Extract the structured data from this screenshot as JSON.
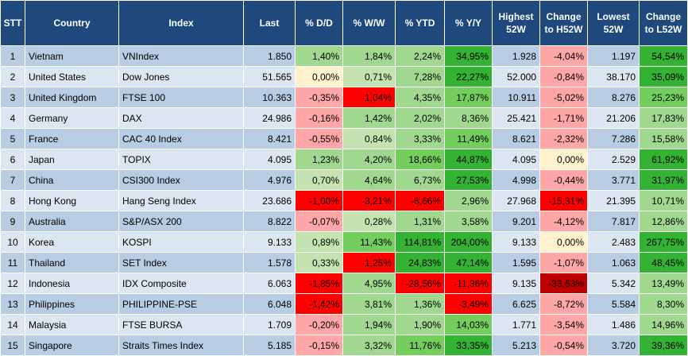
{
  "headers": [
    "STT",
    "Country",
    "Index",
    "Last",
    "% D/D",
    "% W/W",
    "% YTD",
    "% Y/Y",
    "Highest 52W",
    "Change to H52W",
    "Lowest 52W",
    "Change to L52W"
  ],
  "rows": [
    {
      "stt": "1",
      "country": "Vietnam",
      "index": "VNIndex",
      "last": "1.850",
      "dd": "1,40%",
      "ww": "1,84%",
      "ytd": "2,24%",
      "yy": "34,95%",
      "high": "1.928",
      "chg_high": "-4,04%",
      "low": "1.197",
      "chg_low": "54,54%"
    },
    {
      "stt": "2",
      "country": "United States",
      "index": "Dow Jones",
      "last": "51.565",
      "dd": "0,00%",
      "ww": "0,71%",
      "ytd": "7,28%",
      "yy": "22,27%",
      "high": "52.000",
      "chg_high": "-0,84%",
      "low": "38.170",
      "chg_low": "35,09%"
    },
    {
      "stt": "3",
      "country": "United Kingdom",
      "index": "FTSE 100",
      "last": "10.363",
      "dd": "-0,35%",
      "ww": "-1,04%",
      "ytd": "4,35%",
      "yy": "17,87%",
      "high": "10.911",
      "chg_high": "-5,02%",
      "low": "8.276",
      "chg_low": "25,23%"
    },
    {
      "stt": "4",
      "country": "Germany",
      "index": "DAX",
      "last": "24.986",
      "dd": "-0,16%",
      "ww": "1,42%",
      "ytd": "2,02%",
      "yy": "8,36%",
      "high": "25.421",
      "chg_high": "-1,71%",
      "low": "21.206",
      "chg_low": "17,83%"
    },
    {
      "stt": "5",
      "country": "France",
      "index": "CAC 40 Index",
      "last": "8.421",
      "dd": "-0,55%",
      "ww": "0,84%",
      "ytd": "3,33%",
      "yy": "11,49%",
      "high": "8.621",
      "chg_high": "-2,32%",
      "low": "7.286",
      "chg_low": "15,58%"
    },
    {
      "stt": "6",
      "country": "Japan",
      "index": "TOPIX",
      "last": "4.095",
      "dd": "1,23%",
      "ww": "4,20%",
      "ytd": "18,66%",
      "yy": "44,87%",
      "high": "4.095",
      "chg_high": "0,00%",
      "low": "2.529",
      "chg_low": "61,92%"
    },
    {
      "stt": "7",
      "country": "China",
      "index": "CSI300 Index",
      "last": "4.976",
      "dd": "0,70%",
      "ww": "4,64%",
      "ytd": "6,73%",
      "yy": "27,53%",
      "high": "4.998",
      "chg_high": "-0,44%",
      "low": "3.771",
      "chg_low": "31,97%"
    },
    {
      "stt": "8",
      "country": "Hong Kong",
      "index": "Hang Seng Index",
      "last": "23.686",
      "dd": "-1,00%",
      "ww": "-3,21%",
      "ytd": "-6,66%",
      "yy": "2,96%",
      "high": "27.968",
      "chg_high": "-15,31%",
      "low": "21.395",
      "chg_low": "10,71%"
    },
    {
      "stt": "9",
      "country": "Australia",
      "index": "S&P/ASX 200",
      "last": "8.822",
      "dd": "-0,07%",
      "ww": "0,28%",
      "ytd": "1,31%",
      "yy": "3,58%",
      "high": "9.201",
      "chg_high": "-4,12%",
      "low": "7.817",
      "chg_low": "12,86%"
    },
    {
      "stt": "10",
      "country": "Korea",
      "index": "KOSPI",
      "last": "9.133",
      "dd": "0,89%",
      "ww": "11,43%",
      "ytd": "114,81%",
      "yy": "204,00%",
      "high": "9.133",
      "chg_high": "0,00%",
      "low": "2.483",
      "chg_low": "267,75%"
    },
    {
      "stt": "11",
      "country": "Thailand",
      "index": "SET Index",
      "last": "1.578",
      "dd": "0,33%",
      "ww": "-1,25%",
      "ytd": "24,83%",
      "yy": "47,14%",
      "high": "1.595",
      "chg_high": "-1,07%",
      "low": "1.063",
      "chg_low": "48,45%"
    },
    {
      "stt": "12",
      "country": "Indonesia",
      "index": "IDX Composite",
      "last": "6.063",
      "dd": "-1,85%",
      "ww": "4,95%",
      "ytd": "-28,56%",
      "yy": "-11,36%",
      "high": "9.135",
      "chg_high": "-33,63%",
      "low": "5.342",
      "chg_low": "13,49%"
    },
    {
      "stt": "13",
      "country": "Philippines",
      "index": "PHILIPPINE-PSE",
      "last": "6.048",
      "dd": "-1,42%",
      "ww": "3,81%",
      "ytd": "1,36%",
      "yy": "-3,49%",
      "high": "6.625",
      "chg_high": "-8,72%",
      "low": "5.584",
      "chg_low": "8,30%"
    },
    {
      "stt": "14",
      "country": "Malaysia",
      "index": "FTSE BURSA",
      "last": "1.709",
      "dd": "-0,20%",
      "ww": "1,94%",
      "ytd": "1,90%",
      "yy": "14,03%",
      "high": "1.771",
      "chg_high": "-3,54%",
      "low": "1.486",
      "chg_low": "14,96%"
    },
    {
      "stt": "15",
      "country": "Singapore",
      "index": "Straits Times Index",
      "last": "5.185",
      "dd": "-0,15%",
      "ww": "3,32%",
      "ytd": "11,76%",
      "yy": "33,35%",
      "high": "5.213",
      "chg_high": "-0,54%",
      "low": "3.720",
      "chg_low": "39,36%"
    }
  ],
  "colors": {
    "header_bg": "#1f497d",
    "row_odd": "#b8cce4",
    "row_even": "#dce6f1"
  }
}
